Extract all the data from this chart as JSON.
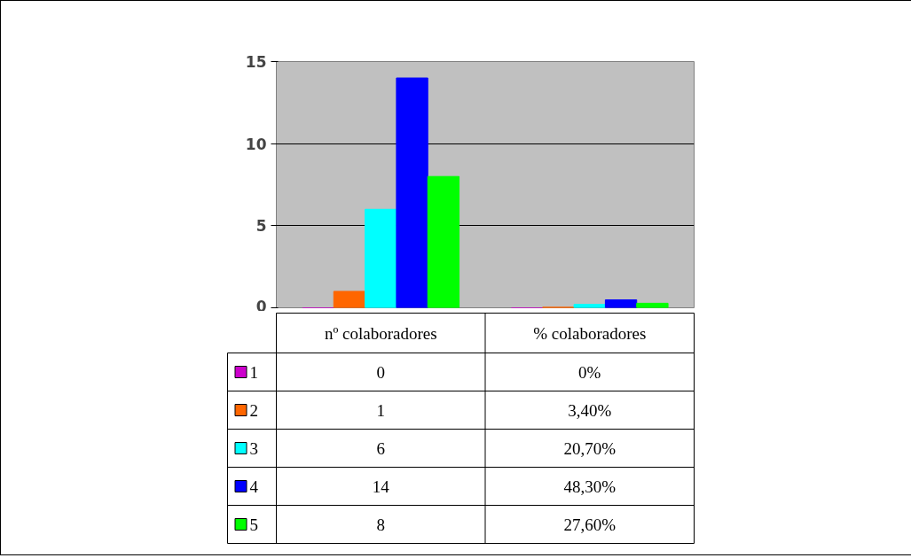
{
  "chart_data": {
    "type": "bar",
    "categories": [
      "nº colaboradores",
      "% colaboradores"
    ],
    "series": [
      {
        "name": "1",
        "color": "#cc00cc",
        "values": [
          0,
          0
        ],
        "value_labels": [
          "0",
          "0%"
        ]
      },
      {
        "name": "2",
        "color": "#ff6600",
        "values": [
          1,
          0.034
        ],
        "value_labels": [
          "1",
          "3,40%"
        ]
      },
      {
        "name": "3",
        "color": "#00ffff",
        "values": [
          6,
          0.207
        ],
        "value_labels": [
          "6",
          "20,70%"
        ]
      },
      {
        "name": "4",
        "color": "#0000ff",
        "values": [
          14,
          0.483
        ],
        "value_labels": [
          "14",
          "48,30%"
        ]
      },
      {
        "name": "5",
        "color": "#00ff00",
        "values": [
          8,
          0.276
        ],
        "value_labels": [
          "8",
          "27,60%"
        ]
      }
    ],
    "ylim": [
      0,
      15
    ],
    "yticks": [
      0,
      5,
      10,
      15
    ],
    "grid": "y",
    "legend": "left"
  }
}
